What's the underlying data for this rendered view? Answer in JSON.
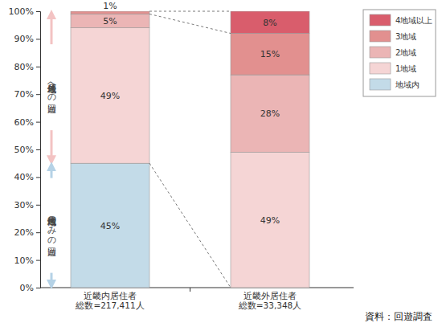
{
  "chart_data": {
    "type": "bar",
    "stacked": true,
    "data_labels": true,
    "grid": false,
    "legend": "upper right",
    "categories": [
      "近畿内居住者\n総数=217,411人",
      "近畿外居住者\n総数=33,348人"
    ],
    "series": [
      {
        "name": "地域内",
        "color": "#c3dbe8",
        "values": [
          45,
          null
        ],
        "value_labels": [
          "45%",
          null
        ]
      },
      {
        "name": "1地域",
        "color": "#f5d5d5",
        "values": [
          49,
          49
        ],
        "value_labels": [
          "49%",
          "49%"
        ]
      },
      {
        "name": "2地域",
        "color": "#ebb5b5",
        "values": [
          5,
          28
        ],
        "value_labels": [
          "5%",
          "28%"
        ]
      },
      {
        "name": "3地域",
        "color": "#e2908f",
        "values": [
          1,
          15
        ],
        "value_labels": [
          "1%",
          "15%"
        ]
      },
      {
        "name": "4地域以上",
        "color": "#d95d6c",
        "values": [
          null,
          8
        ],
        "value_labels": [
          null,
          "8%"
        ]
      }
    ],
    "ylim": [
      0,
      100
    ],
    "yticks": [
      {
        "value": 0,
        "label": "0%"
      },
      {
        "value": 10,
        "label": "10%"
      },
      {
        "value": 20,
        "label": "20%"
      },
      {
        "value": 30,
        "label": "30%"
      },
      {
        "value": 40,
        "label": "40%"
      },
      {
        "value": 50,
        "label": "50%"
      },
      {
        "value": 60,
        "label": "60%"
      },
      {
        "value": 70,
        "label": "70%"
      },
      {
        "value": 80,
        "label": "80%"
      },
      {
        "value": 90,
        "label": "90%"
      },
      {
        "value": 100,
        "label": "100%"
      }
    ],
    "annotations": [
      "居住地域外への回遊",
      "居住地域内のみの回遊"
    ],
    "source": "資料：回遊調査"
  }
}
